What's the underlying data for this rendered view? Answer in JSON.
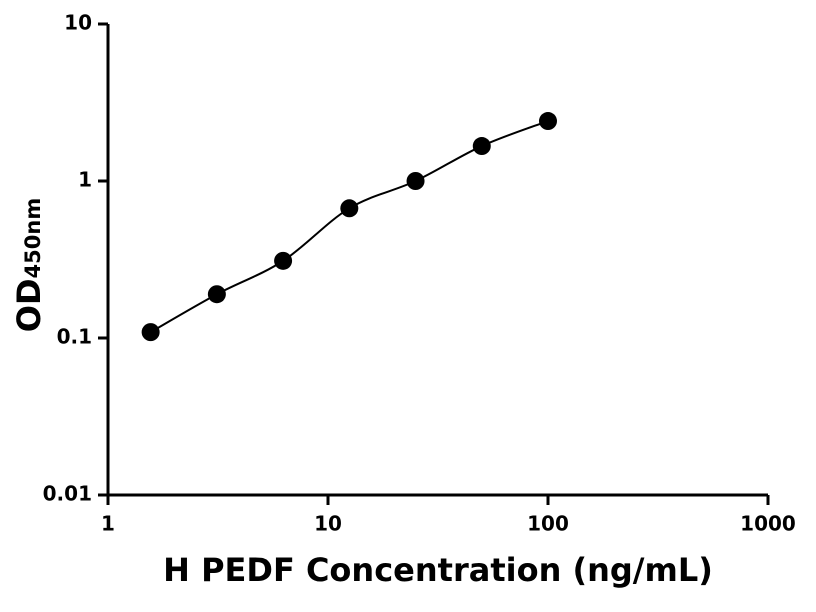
{
  "chart_data": {
    "type": "scatter",
    "x_label": "H PEDF Concentration (ng/mL)",
    "y_label": "OD",
    "y_label_sub": "450nm",
    "x": [
      1.5625,
      3.125,
      6.25,
      12.5,
      25,
      50,
      100
    ],
    "values": [
      0.109,
      0.19,
      0.31,
      0.67,
      1.0,
      1.67,
      2.41
    ],
    "color": "#000000",
    "fit_line": true,
    "xscale": "log",
    "yscale": "log",
    "xlim": [
      1,
      1000
    ],
    "ylim": [
      0.01,
      10
    ],
    "xticks": [
      1,
      10,
      100,
      1000
    ],
    "yticks": [
      0.01,
      0.1,
      1,
      10
    ]
  }
}
